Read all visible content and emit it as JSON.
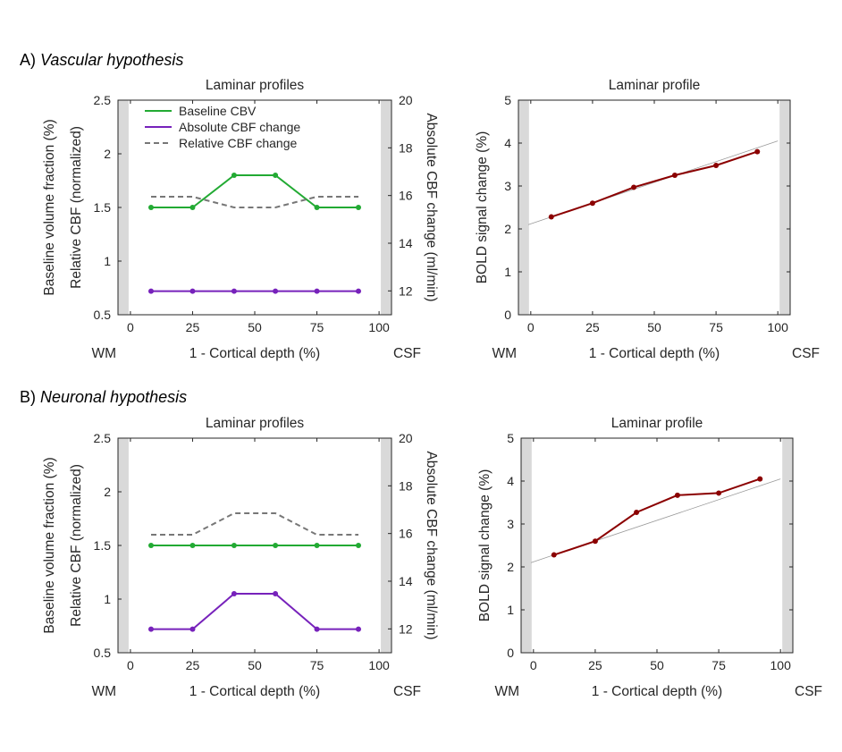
{
  "sections": [
    {
      "letter": "A) ",
      "name": "Vascular hypothesis"
    },
    {
      "letter": "B) ",
      "name": "Neuronal hypothesis"
    }
  ],
  "colors": {
    "cbv": "#22aa33",
    "abs_cbf": "#7722bb",
    "rel_cbf": "#777777",
    "bold": "#8b0000",
    "fit": "#999999",
    "band": "#d9d9d9"
  },
  "chart_data": [
    {
      "type": "line",
      "panel": "A-left",
      "title": "Laminar profiles",
      "xlabel": "1 - Cortical depth (%)",
      "ylabel_left": [
        "Baseline volume fraction (%)",
        "Relative CBF (normalized)"
      ],
      "ylabel_right": "Absolute CBF change (ml/min)",
      "x_end_labels": [
        "WM",
        "CSF"
      ],
      "xlim": [
        -5,
        105
      ],
      "xticks": [
        0,
        25,
        50,
        75,
        100
      ],
      "ylim_left": [
        0.5,
        2.5
      ],
      "yticks_left": [
        0.5,
        1,
        1.5,
        2,
        2.5
      ],
      "ytick_labels_left": [
        "0.5",
        "1",
        "1.5",
        "2",
        "2.5"
      ],
      "ylim_right": [
        11,
        20
      ],
      "yticks_right": [
        12,
        14,
        16,
        18,
        20
      ],
      "x": [
        8.3,
        25,
        41.7,
        58.3,
        75,
        91.7
      ],
      "series": [
        {
          "name": "Baseline CBV",
          "axis": "left",
          "style": "solid",
          "color": "#22aa33",
          "values": [
            1.5,
            1.5,
            1.8,
            1.8,
            1.5,
            1.5
          ]
        },
        {
          "name": "Absolute CBF change",
          "axis": "left",
          "style": "solid",
          "color": "#7722bb",
          "values": [
            0.72,
            0.72,
            0.72,
            0.72,
            0.72,
            0.72
          ]
        },
        {
          "name": "Relative CBF change",
          "axis": "left",
          "style": "dashed",
          "color": "#777777",
          "values": [
            1.6,
            1.6,
            1.5,
            1.5,
            1.6,
            1.6
          ]
        }
      ]
    },
    {
      "type": "line",
      "panel": "A-right",
      "title": "Laminar profile",
      "xlabel": "1 - Cortical depth (%)",
      "ylabel_left": [
        "BOLD signal change (%)"
      ],
      "x_end_labels": [
        "WM",
        "CSF"
      ],
      "xlim": [
        -5,
        105
      ],
      "xticks": [
        0,
        25,
        50,
        75,
        100
      ],
      "ylim_left": [
        0,
        5
      ],
      "yticks_left": [
        0,
        1,
        2,
        3,
        4,
        5
      ],
      "ytick_labels_left": [
        "0",
        "1",
        "2",
        "3",
        "4",
        "5"
      ],
      "x": [
        8.3,
        25,
        41.7,
        58.3,
        75,
        91.7
      ],
      "series": [
        {
          "name": "BOLD",
          "axis": "left",
          "style": "solid",
          "color": "#8b0000",
          "values": [
            2.28,
            2.6,
            2.97,
            3.25,
            3.48,
            3.8
          ]
        }
      ],
      "fit_line": {
        "x": [
          -1,
          100
        ],
        "y": [
          2.1,
          4.05
        ]
      }
    },
    {
      "type": "line",
      "panel": "B-left",
      "title": "Laminar profiles",
      "xlabel": "1 - Cortical depth (%)",
      "ylabel_left": [
        "Baseline volume fraction (%)",
        "Relative CBF (normalized)"
      ],
      "ylabel_right": "Absolute CBF change (ml/min)",
      "x_end_labels": [
        "WM",
        "CSF"
      ],
      "xlim": [
        -5,
        105
      ],
      "xticks": [
        0,
        25,
        50,
        75,
        100
      ],
      "ylim_left": [
        0.5,
        2.5
      ],
      "yticks_left": [
        0.5,
        1,
        1.5,
        2,
        2.5
      ],
      "ytick_labels_left": [
        "0.5",
        "1",
        "1.5",
        "2",
        "2.5"
      ],
      "ylim_right": [
        11,
        20
      ],
      "yticks_right": [
        12,
        14,
        16,
        18,
        20
      ],
      "x": [
        8.3,
        25,
        41.7,
        58.3,
        75,
        91.7
      ],
      "series": [
        {
          "name": "Baseline CBV",
          "axis": "left",
          "style": "solid",
          "color": "#22aa33",
          "values": [
            1.5,
            1.5,
            1.5,
            1.5,
            1.5,
            1.5
          ]
        },
        {
          "name": "Absolute CBF change",
          "axis": "left",
          "style": "solid",
          "color": "#7722bb",
          "values": [
            0.72,
            0.72,
            1.05,
            1.05,
            0.72,
            0.72
          ]
        },
        {
          "name": "Relative CBF change",
          "axis": "left",
          "style": "dashed",
          "color": "#777777",
          "values": [
            1.6,
            1.6,
            1.8,
            1.8,
            1.6,
            1.6
          ]
        }
      ]
    },
    {
      "type": "line",
      "panel": "B-right",
      "title": "Laminar profile",
      "xlabel": "1 - Cortical depth (%)",
      "ylabel_left": [
        "BOLD signal change (%)"
      ],
      "x_end_labels": [
        "WM",
        "CSF"
      ],
      "xlim": [
        -5,
        105
      ],
      "xticks": [
        0,
        25,
        50,
        75,
        100
      ],
      "ylim_left": [
        0,
        5
      ],
      "yticks_left": [
        0,
        1,
        2,
        3,
        4,
        5
      ],
      "ytick_labels_left": [
        "0",
        "1",
        "2",
        "3",
        "4",
        "5"
      ],
      "x": [
        8.3,
        25,
        41.7,
        58.3,
        75,
        91.7
      ],
      "series": [
        {
          "name": "BOLD",
          "axis": "left",
          "style": "solid",
          "color": "#8b0000",
          "values": [
            2.28,
            2.6,
            3.27,
            3.67,
            3.72,
            4.05
          ]
        }
      ],
      "fit_line": {
        "x": [
          -1,
          100
        ],
        "y": [
          2.1,
          4.05
        ]
      }
    }
  ]
}
